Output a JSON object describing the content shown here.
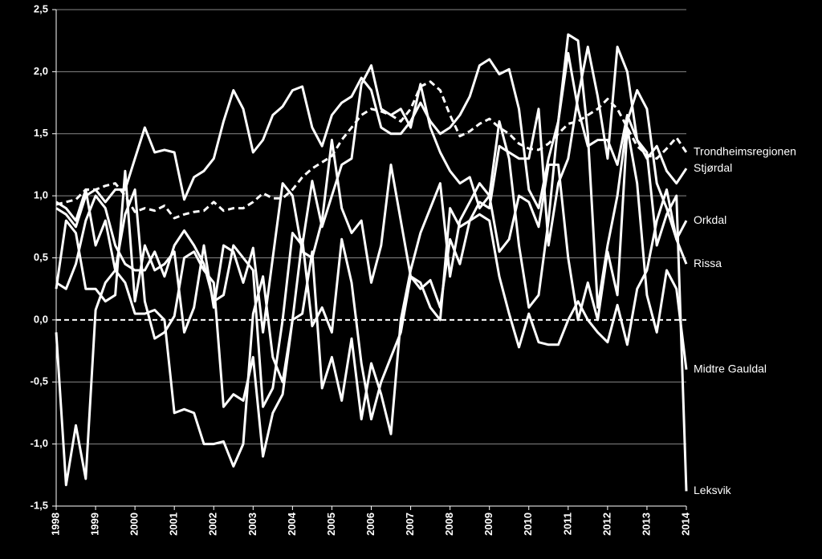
{
  "chart_data": {
    "type": "line",
    "x": [
      1998,
      1998.25,
      1998.5,
      1998.75,
      1999,
      1999.25,
      1999.5,
      1999.75,
      2000,
      2000.25,
      2000.5,
      2000.75,
      2001,
      2001.25,
      2001.5,
      2001.75,
      2002,
      2002.25,
      2002.5,
      2002.75,
      2003,
      2003.25,
      2003.5,
      2003.75,
      2004,
      2004.25,
      2004.5,
      2004.75,
      2005,
      2005.25,
      2005.5,
      2005.75,
      2006,
      2006.25,
      2006.5,
      2006.75,
      2007,
      2007.25,
      2007.5,
      2007.75,
      2008,
      2008.25,
      2008.5,
      2008.75,
      2009,
      2009.25,
      2009.5,
      2009.75,
      2010,
      2010.25,
      2010.5,
      2010.75,
      2011,
      2011.25,
      2011.5,
      2011.75,
      2012,
      2012.25,
      2012.5,
      2012.75,
      2013,
      2013.25,
      2013.5,
      2013.75,
      2014
    ],
    "xlim": [
      1998,
      2014
    ],
    "xticks": [
      1998,
      1999,
      2000,
      2001,
      2002,
      2003,
      2004,
      2005,
      2006,
      2007,
      2008,
      2009,
      2010,
      2011,
      2012,
      2013,
      2014
    ],
    "ylim": [
      -1.5,
      2.5
    ],
    "yticks": [
      {
        "value": -1.5,
        "label": "-1,5"
      },
      {
        "value": -1,
        "label": "-1,0"
      },
      {
        "value": -0.5,
        "label": "-0,5"
      },
      {
        "value": 0,
        "label": "0,0"
      },
      {
        "value": 0.5,
        "label": "0,5"
      },
      {
        "value": 1,
        "label": "1,0"
      },
      {
        "value": 1.5,
        "label": "1,5"
      },
      {
        "value": 2,
        "label": "2,0"
      },
      {
        "value": 2.5,
        "label": "2,5"
      }
    ],
    "grid": true,
    "series": [
      {
        "name": "Trondheimsregionen",
        "color": "#ffffff",
        "dashed": true,
        "values": [
          0.93,
          0.95,
          0.97,
          1.05,
          1.05,
          1.08,
          1.1,
          1.0,
          0.87,
          0.9,
          0.88,
          0.92,
          0.82,
          0.85,
          0.87,
          0.88,
          0.95,
          0.88,
          0.9,
          0.9,
          0.95,
          1.02,
          0.98,
          0.98,
          1.05,
          1.15,
          1.22,
          1.27,
          1.32,
          1.45,
          1.55,
          1.65,
          1.7,
          1.68,
          1.65,
          1.6,
          1.7,
          1.88,
          1.92,
          1.85,
          1.65,
          1.48,
          1.52,
          1.58,
          1.62,
          1.55,
          1.5,
          1.42,
          1.38,
          1.37,
          1.42,
          1.5,
          1.58,
          1.6,
          1.65,
          1.7,
          1.78,
          1.7,
          1.55,
          1.4,
          1.33,
          1.3,
          1.38,
          1.47,
          1.35
        ]
      },
      {
        "name": "Stjørdal",
        "color": "#ffffff",
        "values": [
          0.9,
          0.85,
          0.75,
          1.0,
          1.05,
          0.95,
          1.05,
          1.05,
          1.3,
          1.55,
          1.35,
          1.37,
          1.35,
          0.97,
          1.15,
          1.2,
          1.3,
          1.6,
          1.85,
          1.7,
          1.35,
          1.45,
          1.65,
          1.72,
          1.85,
          1.88,
          1.55,
          1.4,
          1.65,
          1.75,
          1.8,
          1.95,
          1.85,
          1.55,
          1.5,
          1.5,
          1.6,
          1.75,
          1.6,
          1.5,
          1.55,
          1.65,
          1.8,
          2.05,
          2.1,
          1.98,
          2.02,
          1.7,
          1.05,
          0.9,
          1.3,
          1.6,
          2.15,
          1.7,
          1.4,
          1.45,
          1.45,
          1.25,
          1.65,
          1.45,
          1.3,
          1.4,
          1.2,
          1.1,
          1.22
        ]
      },
      {
        "name": "Orkdal",
        "color": "#ffffff",
        "values": [
          0.3,
          0.25,
          0.45,
          0.8,
          1.0,
          0.9,
          0.6,
          0.45,
          0.4,
          0.4,
          0.55,
          0.35,
          0.6,
          0.72,
          0.6,
          0.45,
          0.15,
          0.2,
          0.6,
          0.5,
          0.4,
          -0.7,
          -0.55,
          0.0,
          0.7,
          0.6,
          1.12,
          0.75,
          1.0,
          1.25,
          1.3,
          1.9,
          2.05,
          1.7,
          1.65,
          1.7,
          1.55,
          1.9,
          1.55,
          1.35,
          1.2,
          1.1,
          1.15,
          0.9,
          1.0,
          1.6,
          1.3,
          0.6,
          0.1,
          0.2,
          0.8,
          1.6,
          2.3,
          2.25,
          1.5,
          0.1,
          0.6,
          1.0,
          1.6,
          1.85,
          1.7,
          1.1,
          0.9,
          0.65,
          0.8
        ]
      },
      {
        "name": "Rissa",
        "color": "#ffffff",
        "values": [
          0.25,
          0.8,
          0.7,
          0.25,
          0.25,
          0.15,
          0.2,
          1.2,
          0.15,
          0.6,
          0.4,
          0.45,
          0.55,
          -0.1,
          0.1,
          0.6,
          0.1,
          0.6,
          0.55,
          0.3,
          0.58,
          -0.1,
          0.5,
          1.1,
          1.0,
          0.55,
          0.5,
          0.8,
          1.45,
          0.9,
          0.7,
          0.8,
          0.3,
          0.6,
          1.25,
          0.8,
          0.35,
          0.3,
          0.1,
          0.0,
          0.9,
          0.75,
          0.8,
          0.85,
          0.8,
          0.35,
          0.05,
          -0.22,
          0.05,
          -0.18,
          -0.2,
          -0.2,
          0.0,
          0.15,
          0.0,
          -0.1,
          -0.18,
          0.12,
          -0.2,
          0.25,
          0.4,
          0.8,
          1.05,
          0.65,
          0.45
        ]
      },
      {
        "name": "Midtre Gauldal",
        "color": "#ffffff",
        "values": [
          0.95,
          0.9,
          0.8,
          1.05,
          0.6,
          0.8,
          0.4,
          0.3,
          0.05,
          0.05,
          0.08,
          0.0,
          -0.75,
          -0.72,
          -0.75,
          -1.0,
          -1.0,
          -0.98,
          -1.18,
          -1.0,
          0.05,
          0.35,
          -0.3,
          -0.5,
          0.0,
          0.05,
          0.55,
          -0.55,
          -0.3,
          -0.65,
          -0.15,
          -0.8,
          -0.35,
          -0.6,
          -0.92,
          0.0,
          0.4,
          0.7,
          0.9,
          1.1,
          0.35,
          0.8,
          0.95,
          1.1,
          1.0,
          0.55,
          0.65,
          1.0,
          0.95,
          0.75,
          1.25,
          1.25,
          0.5,
          0.0,
          0.3,
          0.0,
          0.55,
          0.2,
          1.55,
          1.1,
          0.2,
          -0.1,
          0.4,
          0.25,
          -0.4
        ]
      },
      {
        "name": "Leksvik",
        "color": "#ffffff",
        "values": [
          -0.1,
          -1.33,
          -0.85,
          -1.28,
          0.08,
          0.3,
          0.4,
          0.85,
          1.05,
          0.15,
          -0.15,
          -0.1,
          0.03,
          0.5,
          0.55,
          0.4,
          0.3,
          -0.7,
          -0.6,
          -0.65,
          -0.3,
          -1.1,
          -0.75,
          -0.6,
          0.0,
          0.65,
          -0.05,
          0.1,
          -0.1,
          0.65,
          0.3,
          -0.35,
          -0.8,
          -0.5,
          -0.3,
          -0.1,
          0.35,
          0.25,
          0.32,
          0.1,
          0.65,
          0.45,
          0.8,
          0.95,
          0.9,
          1.4,
          1.35,
          1.3,
          1.3,
          1.7,
          0.6,
          1.1,
          1.3,
          1.8,
          2.2,
          1.8,
          1.3,
          2.2,
          2.0,
          1.45,
          1.35,
          0.6,
          0.85,
          1.0,
          -1.38
        ]
      }
    ]
  }
}
